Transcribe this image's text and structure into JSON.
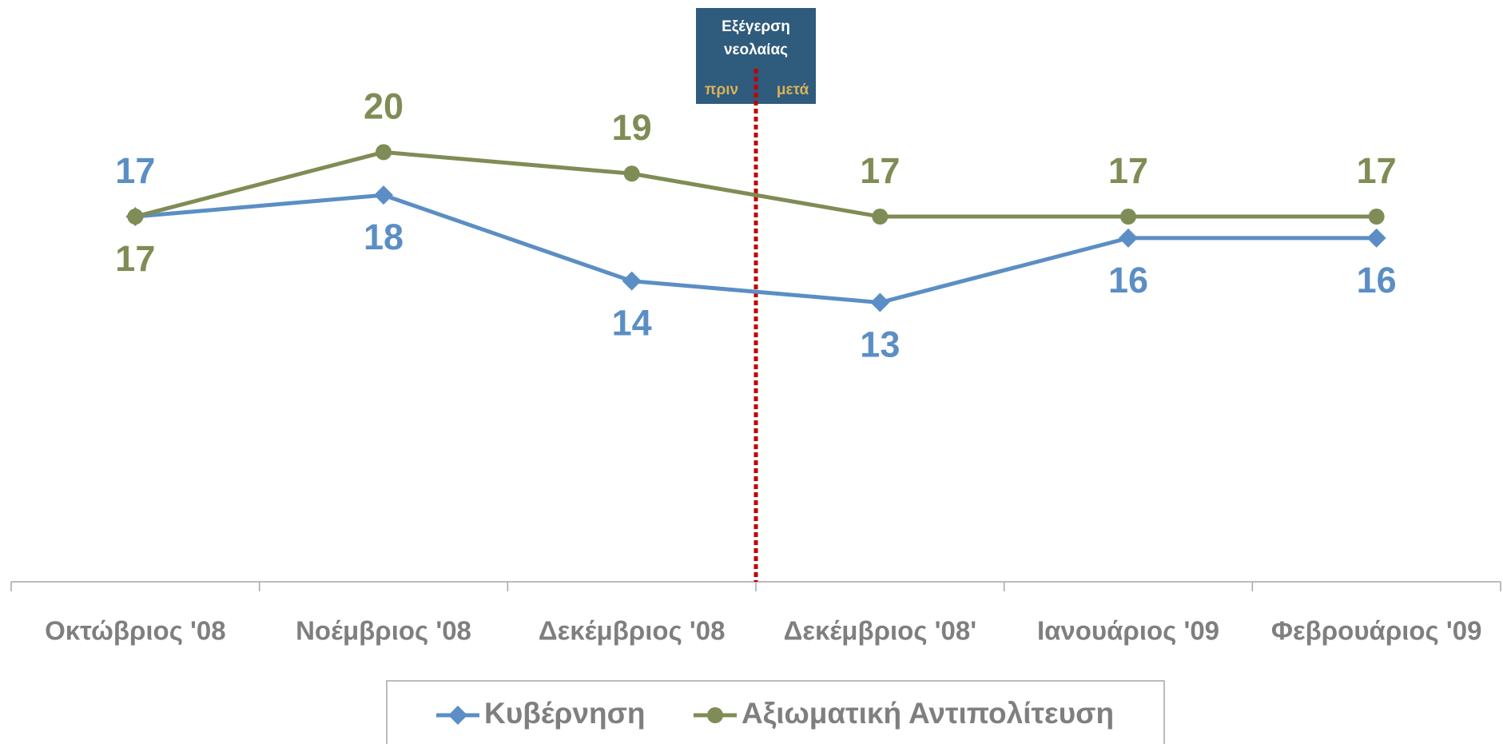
{
  "chart_data": {
    "type": "line",
    "categories": [
      "Οκτώβριος '08",
      "Νοέμβριος '08",
      "Δεκέμβριος '08",
      "Δεκέμβριος '08'",
      "Ιανουάριος '09",
      "Φεβρουάριος '09"
    ],
    "series": [
      {
        "name": "Κυβέρνηση",
        "color": "#5b8ec4",
        "marker": "diamond",
        "values": [
          17,
          18,
          14,
          13,
          16,
          16
        ]
      },
      {
        "name": "Αξιωματική Αντιπολίτευση",
        "color": "#7f8c55",
        "marker": "circle",
        "values": [
          17,
          20,
          19,
          17,
          17,
          17
        ]
      }
    ],
    "ylim": [
      0,
      25
    ],
    "grid": false,
    "legend": "bottom",
    "annotation": {
      "title": "Εξέγερση νεολαίας",
      "before": "πριν",
      "after": "μετά",
      "line_color": "#c00000"
    }
  }
}
